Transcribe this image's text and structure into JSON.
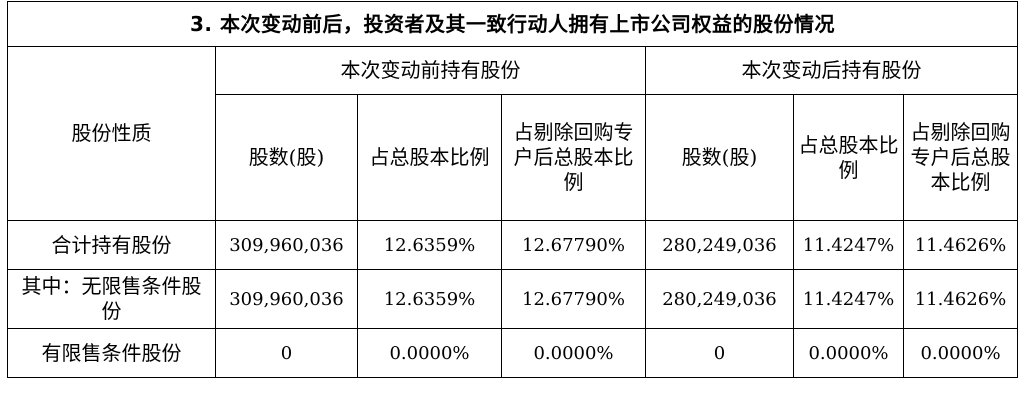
{
  "table": {
    "title": "3. 本次变动前后，投资者及其一致行动人拥有上市公司权益的股份情况",
    "row_header": "股份性质",
    "group_before": "本次变动前持有股份",
    "group_after": "本次变动后持有股份",
    "columns_before": [
      "股数(股)",
      "占总股本比例",
      "占剔除回购专户后总股本比例"
    ],
    "columns_after": [
      "股数(股)",
      "占总股本比例",
      "占剔除回购专户后总股本比例"
    ],
    "rows": [
      {
        "label": "合计持有股份",
        "before": [
          "309,960,036",
          "12.6359%",
          "12.67790%"
        ],
        "after": [
          "280,249,036",
          "11.4247%",
          "11.4626%"
        ]
      },
      {
        "label": "其中：无限售条件股份",
        "before": [
          "309,960,036",
          "12.6359%",
          "12.67790%"
        ],
        "after": [
          "280,249,036",
          "11.4247%",
          "11.4626%"
        ]
      },
      {
        "label": "有限售条件股份",
        "before": [
          "0",
          "0.0000%",
          "0.0000%"
        ],
        "after": [
          "0",
          "0.0000%",
          "0.0000%"
        ]
      }
    ]
  }
}
